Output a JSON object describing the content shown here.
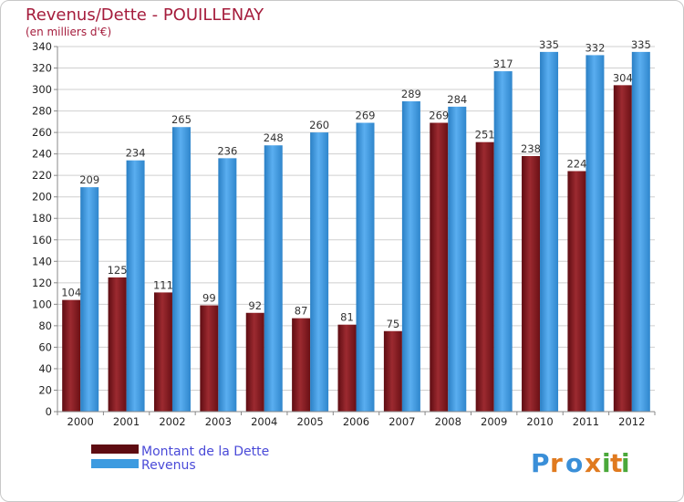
{
  "chart_data": {
    "type": "bar",
    "title": "Revenus/Dette - POUILLENAY",
    "subtitle": "(en milliers d'€)",
    "categories": [
      "2000",
      "2001",
      "2002",
      "2003",
      "2004",
      "2005",
      "2006",
      "2007",
      "2008",
      "2009",
      "2010",
      "2011",
      "2012"
    ],
    "series": [
      {
        "name": "Montant de la Dette",
        "color": "#8b1e24",
        "values": [
          104,
          125,
          111,
          99,
          92,
          87,
          81,
          75,
          269,
          251,
          238,
          224,
          304
        ]
      },
      {
        "name": "Revenus",
        "color": "#3d9be0",
        "values": [
          209,
          234,
          265,
          236,
          248,
          260,
          269,
          289,
          284,
          317,
          335,
          332,
          335
        ]
      }
    ],
    "ylim": [
      0,
      340
    ],
    "yticks": [
      0,
      20,
      40,
      60,
      80,
      100,
      120,
      140,
      160,
      180,
      200,
      220,
      240,
      260,
      280,
      300,
      320,
      340
    ],
    "grid": true,
    "legend": "bottom-left"
  },
  "logo": {
    "text": "Proxiti"
  }
}
